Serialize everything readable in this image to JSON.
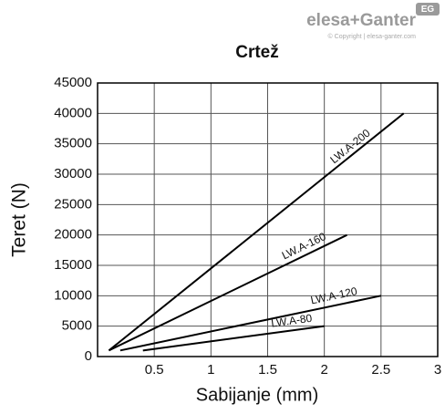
{
  "logo": {
    "badge": "EG",
    "brand": "elesa+Ganter",
    "copyright": "© Copyright | elesa-ganter.com"
  },
  "chart_data": {
    "type": "line",
    "title": "Crtež",
    "x_label": "Sabijanje (mm)",
    "y_label": "Teret (N)",
    "xlim": [
      0,
      3
    ],
    "ylim": [
      0,
      45000
    ],
    "xticks": [
      0.5,
      1,
      1.5,
      2,
      2.5,
      3
    ],
    "yticks": [
      0,
      5000,
      10000,
      15000,
      20000,
      25000,
      30000,
      35000,
      40000,
      45000
    ],
    "grid": true,
    "series": [
      {
        "name": "LW.A-200",
        "color": "#000000",
        "x": [
          0.1,
          2.7
        ],
        "values": [
          1000,
          40000
        ]
      },
      {
        "name": "LW.A-160",
        "color": "#000000",
        "x": [
          0.1,
          2.2
        ],
        "values": [
          1000,
          20000
        ]
      },
      {
        "name": "LW.A-120",
        "color": "#000000",
        "x": [
          0.2,
          2.5
        ],
        "values": [
          1000,
          10000
        ]
      },
      {
        "name": "LW.A-80",
        "color": "#000000",
        "x": [
          0.4,
          2.0
        ],
        "values": [
          1000,
          5000
        ]
      }
    ]
  }
}
